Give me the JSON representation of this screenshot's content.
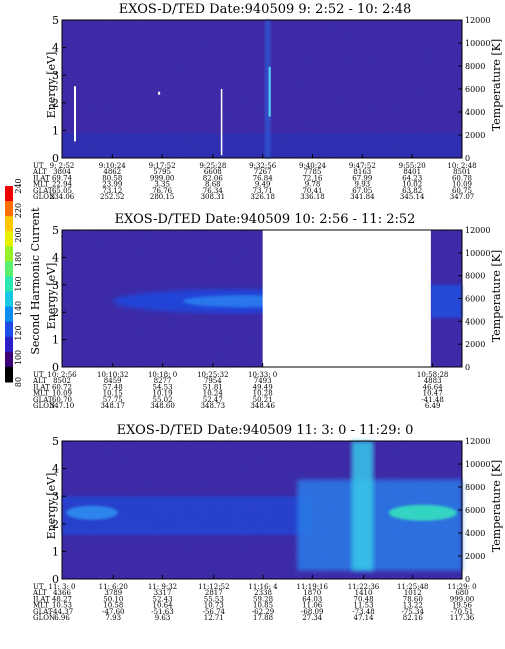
{
  "colorbar": {
    "label": "Second Harmonic Current",
    "ticks": [
      "80",
      "100",
      "120",
      "140",
      "160",
      "180",
      "200",
      "220",
      "240"
    ],
    "colors": [
      "#000000",
      "#3c0078",
      "#2a1fc8",
      "#1c4ee6",
      "#0a8cf0",
      "#19c8e6",
      "#2ae6b4",
      "#5af06e",
      "#96f02a",
      "#e6f000",
      "#ffc800",
      "#ff6e00",
      "#f00000"
    ]
  },
  "chart_data": [
    {
      "type": "heatmap",
      "title": "EXOS-D/TED   Date:940509  9: 2:52 - 10: 2:48",
      "ylabel": "Energy [eV]",
      "y2label": "Temperature [K]",
      "ylim": [
        0,
        5
      ],
      "y2lim": [
        0,
        12000
      ],
      "yticks": [
        "0",
        "1",
        "2",
        "3",
        "4",
        "5"
      ],
      "y2ticks": [
        "0",
        "2000",
        "4000",
        "6000",
        "8000",
        "10000",
        "12000"
      ],
      "gap": null,
      "table": {
        "labels": [
          "UT",
          "ALT",
          "ILAT",
          "MLT",
          "GLAT",
          "GLON"
        ],
        "columns": [
          [
            "9: 2:52",
            "3804",
            "69.74",
            "22.94",
            "65.05",
            "234.06"
          ],
          [
            "9:10:24",
            "4862",
            "80.58",
            "23.99",
            "73.12",
            "252.52"
          ],
          [
            "9:17:52",
            "5795",
            "999.00",
            "3.35",
            "76.76",
            "280.15"
          ],
          [
            "9:25:28",
            "6608",
            "82.06",
            "8.68",
            "76.34",
            "308.31"
          ],
          [
            "9:32:56",
            "7267",
            "76.84",
            "9.49",
            "73.71",
            "326.18"
          ],
          [
            "9:40:24",
            "7785",
            "72.16",
            "9.78",
            "70.41",
            "336.18"
          ],
          [
            "9:47:52",
            "8163",
            "67.99",
            "9.93",
            "67.05",
            "341.84"
          ],
          [
            "9:55:20",
            "8401",
            "64.23",
            "10.02",
            "63.82",
            "345.14"
          ],
          [
            "10: 2:48",
            "8501",
            "60.78",
            "10.09",
            "60.75",
            "347.07"
          ]
        ]
      }
    },
    {
      "type": "heatmap",
      "title": "EXOS-D/TED   Date:940509  10: 2:56 - 11: 2:52",
      "ylabel": "Energy [eV]",
      "y2label": "Temperature [K]",
      "ylim": [
        0,
        5
      ],
      "y2lim": [
        0,
        12000
      ],
      "yticks": [
        "0",
        "1",
        "2",
        "3",
        "4",
        "5"
      ],
      "y2ticks": [
        "0",
        "2000",
        "4000",
        "6000",
        "8000",
        "10000",
        "12000"
      ],
      "gap": [
        10.55,
        10.97
      ],
      "table": {
        "labels": [
          "UT",
          "ALT",
          "ILAT",
          "MLT",
          "GLAT",
          "GLON"
        ],
        "columns": [
          [
            "10: 2:56",
            "8502",
            "60.72",
            "10.09",
            "60.70",
            "347.10"
          ],
          [
            "10:10:32",
            "8459",
            "57.48",
            "10.15",
            "57.75",
            "348.17"
          ],
          [
            "10:18: 0",
            "8277",
            "54.53",
            "10.19",
            "55.02",
            "348.60"
          ],
          [
            "10:25:32",
            "7954",
            "51.81",
            "10.24",
            "52.47",
            "348.73"
          ],
          [
            "10:33: 0",
            "7493",
            "49.49",
            "10.28",
            "50.21",
            "348.46"
          ],
          [
            "10:58:28",
            "4883",
            "46.64",
            "10.47",
            "-41.48",
            "6.49"
          ]
        ]
      }
    },
    {
      "type": "heatmap",
      "title": "EXOS-D/TED   Date:940509  11: 3: 0 - 11:29: 0",
      "ylabel": "Energy [eV]",
      "y2label": "Temperature [K]",
      "ylim": [
        0,
        5
      ],
      "y2lim": [
        0,
        12000
      ],
      "yticks": [
        "0",
        "1",
        "2",
        "3",
        "4",
        "5"
      ],
      "y2ticks": [
        "0",
        "2000",
        "4000",
        "6000",
        "8000",
        "10000",
        "12000"
      ],
      "gap": null,
      "table": {
        "labels": [
          "UT",
          "ALT",
          "ILAT",
          "MLT",
          "GLAT",
          "GLON"
        ],
        "columns": [
          [
            "11: 3: 0",
            "4366",
            "48.27",
            "10.53",
            "-44.37",
            "6.96"
          ],
          [
            "11: 6:20",
            "3789",
            "50.10",
            "10.58",
            "-47.60",
            "7.93"
          ],
          [
            "11: 9:32",
            "3317",
            "52.43",
            "10.64",
            "-51.63",
            "9.63"
          ],
          [
            "11:12:52",
            "2817",
            "55.53",
            "10.73",
            "-56.74",
            "12.71"
          ],
          [
            "11:16: 4",
            "2338",
            "59.28",
            "10.85",
            "-62.29",
            "17.88"
          ],
          [
            "11:19:16",
            "1870",
            "64.03",
            "11.06",
            "-68.09",
            "27.34"
          ],
          [
            "11:22:36",
            "1410",
            "70.48",
            "11.53",
            "-73.48",
            "47.14"
          ],
          [
            "11:25:48",
            "1012",
            "78.60",
            "13.22",
            "-75.34",
            "82.16"
          ],
          [
            "11:29: 0",
            "680",
            "999.00",
            "19.56",
            "-70.51",
            "117.36"
          ]
        ]
      }
    }
  ]
}
